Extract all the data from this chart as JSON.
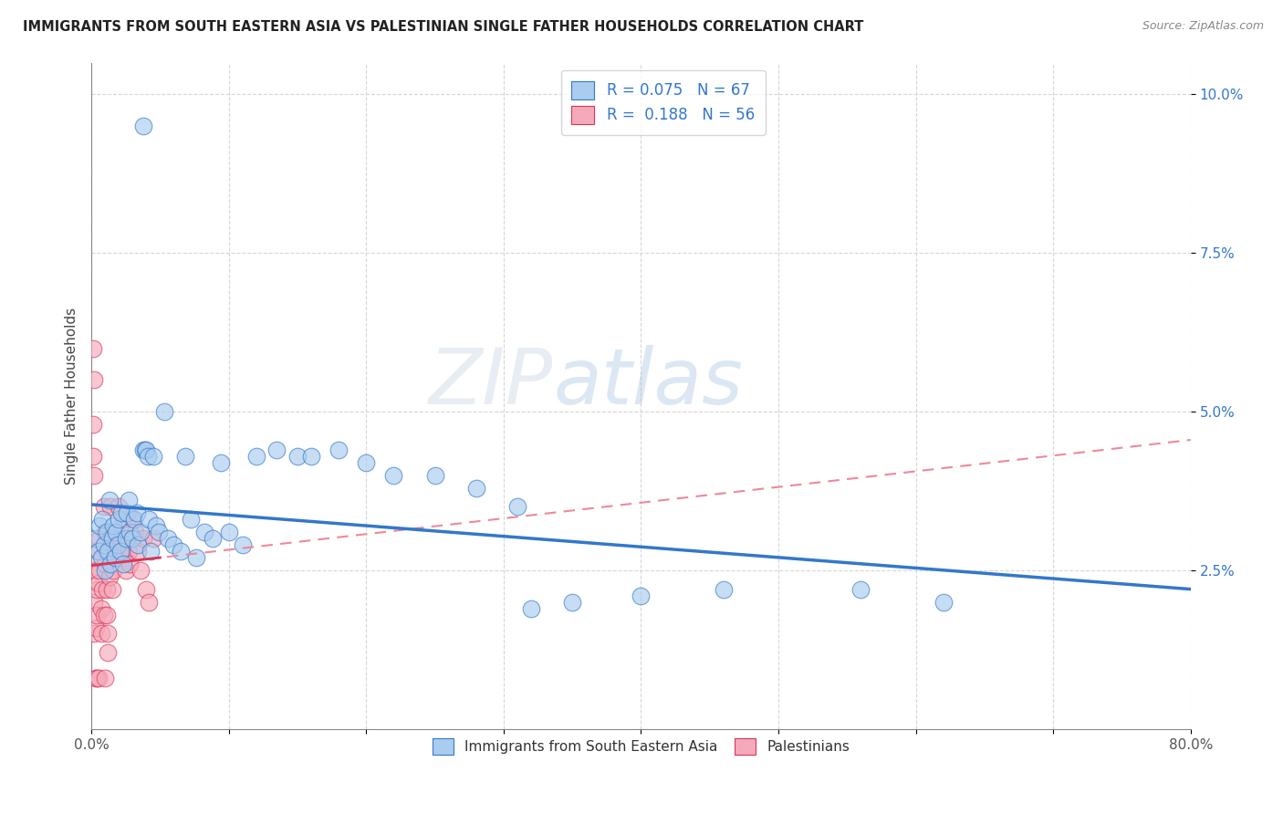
{
  "title": "IMMIGRANTS FROM SOUTH EASTERN ASIA VS PALESTINIAN SINGLE FATHER HOUSEHOLDS CORRELATION CHART",
  "source": "Source: ZipAtlas.com",
  "ylabel": "Single Father Households",
  "legend_label1": "Immigrants from South Eastern Asia",
  "legend_label2": "Palestinians",
  "R1": 0.075,
  "N1": 67,
  "R2": 0.188,
  "N2": 56,
  "color_blue": "#aaccee",
  "color_pink": "#f5aabb",
  "color_line_blue": "#3377cc",
  "color_line_pink": "#dd3355",
  "color_trendline_pink_dash": "#ee8899",
  "xlim": [
    0.0,
    0.8
  ],
  "ylim": [
    0.0,
    0.105
  ],
  "yticks": [
    0.025,
    0.05,
    0.075,
    0.1
  ],
  "watermark_zip": "ZIP",
  "watermark_atlas": "atlas",
  "blue_points": [
    [
      0.003,
      0.03
    ],
    [
      0.005,
      0.028
    ],
    [
      0.006,
      0.032
    ],
    [
      0.007,
      0.027
    ],
    [
      0.008,
      0.033
    ],
    [
      0.009,
      0.029
    ],
    [
      0.01,
      0.025
    ],
    [
      0.011,
      0.031
    ],
    [
      0.012,
      0.028
    ],
    [
      0.013,
      0.036
    ],
    [
      0.014,
      0.026
    ],
    [
      0.015,
      0.03
    ],
    [
      0.016,
      0.032
    ],
    [
      0.017,
      0.027
    ],
    [
      0.018,
      0.031
    ],
    [
      0.019,
      0.029
    ],
    [
      0.02,
      0.033
    ],
    [
      0.021,
      0.028
    ],
    [
      0.022,
      0.034
    ],
    [
      0.023,
      0.026
    ],
    [
      0.025,
      0.03
    ],
    [
      0.026,
      0.034
    ],
    [
      0.027,
      0.036
    ],
    [
      0.028,
      0.031
    ],
    [
      0.03,
      0.03
    ],
    [
      0.031,
      0.033
    ],
    [
      0.033,
      0.034
    ],
    [
      0.034,
      0.029
    ],
    [
      0.036,
      0.031
    ],
    [
      0.038,
      0.044
    ],
    [
      0.039,
      0.044
    ],
    [
      0.04,
      0.044
    ],
    [
      0.041,
      0.043
    ],
    [
      0.042,
      0.033
    ],
    [
      0.043,
      0.028
    ],
    [
      0.045,
      0.043
    ],
    [
      0.047,
      0.032
    ],
    [
      0.049,
      0.031
    ],
    [
      0.053,
      0.05
    ],
    [
      0.056,
      0.03
    ],
    [
      0.06,
      0.029
    ],
    [
      0.065,
      0.028
    ],
    [
      0.068,
      0.043
    ],
    [
      0.072,
      0.033
    ],
    [
      0.076,
      0.027
    ],
    [
      0.082,
      0.031
    ],
    [
      0.088,
      0.03
    ],
    [
      0.094,
      0.042
    ],
    [
      0.1,
      0.031
    ],
    [
      0.11,
      0.029
    ],
    [
      0.12,
      0.043
    ],
    [
      0.135,
      0.044
    ],
    [
      0.15,
      0.043
    ],
    [
      0.16,
      0.043
    ],
    [
      0.18,
      0.044
    ],
    [
      0.2,
      0.042
    ],
    [
      0.22,
      0.04
    ],
    [
      0.25,
      0.04
    ],
    [
      0.28,
      0.038
    ],
    [
      0.31,
      0.035
    ],
    [
      0.35,
      0.02
    ],
    [
      0.4,
      0.021
    ],
    [
      0.46,
      0.022
    ],
    [
      0.56,
      0.022
    ],
    [
      0.62,
      0.02
    ],
    [
      0.038,
      0.095
    ],
    [
      0.32,
      0.019
    ]
  ],
  "pink_points": [
    [
      0.001,
      0.043
    ],
    [
      0.002,
      0.02
    ],
    [
      0.002,
      0.015
    ],
    [
      0.003,
      0.025
    ],
    [
      0.003,
      0.016
    ],
    [
      0.004,
      0.022
    ],
    [
      0.004,
      0.018
    ],
    [
      0.005,
      0.028
    ],
    [
      0.005,
      0.023
    ],
    [
      0.006,
      0.03
    ],
    [
      0.006,
      0.025
    ],
    [
      0.007,
      0.019
    ],
    [
      0.007,
      0.015
    ],
    [
      0.008,
      0.027
    ],
    [
      0.008,
      0.022
    ],
    [
      0.009,
      0.018
    ],
    [
      0.009,
      0.035
    ],
    [
      0.01,
      0.031
    ],
    [
      0.01,
      0.026
    ],
    [
      0.011,
      0.022
    ],
    [
      0.011,
      0.018
    ],
    [
      0.012,
      0.015
    ],
    [
      0.012,
      0.012
    ],
    [
      0.013,
      0.028
    ],
    [
      0.013,
      0.024
    ],
    [
      0.014,
      0.035
    ],
    [
      0.014,
      0.03
    ],
    [
      0.015,
      0.022
    ],
    [
      0.016,
      0.025
    ],
    [
      0.017,
      0.03
    ],
    [
      0.018,
      0.028
    ],
    [
      0.02,
      0.035
    ],
    [
      0.021,
      0.03
    ],
    [
      0.022,
      0.028
    ],
    [
      0.023,
      0.033
    ],
    [
      0.024,
      0.027
    ],
    [
      0.025,
      0.025
    ],
    [
      0.026,
      0.03
    ],
    [
      0.027,
      0.028
    ],
    [
      0.028,
      0.026
    ],
    [
      0.03,
      0.033
    ],
    [
      0.032,
      0.031
    ],
    [
      0.034,
      0.028
    ],
    [
      0.036,
      0.025
    ],
    [
      0.038,
      0.03
    ],
    [
      0.04,
      0.022
    ],
    [
      0.042,
      0.02
    ],
    [
      0.045,
      0.03
    ],
    [
      0.001,
      0.048
    ],
    [
      0.002,
      0.04
    ],
    [
      0.003,
      0.008
    ],
    [
      0.004,
      0.008
    ],
    [
      0.005,
      0.008
    ],
    [
      0.01,
      0.008
    ],
    [
      0.001,
      0.06
    ],
    [
      0.002,
      0.055
    ]
  ]
}
